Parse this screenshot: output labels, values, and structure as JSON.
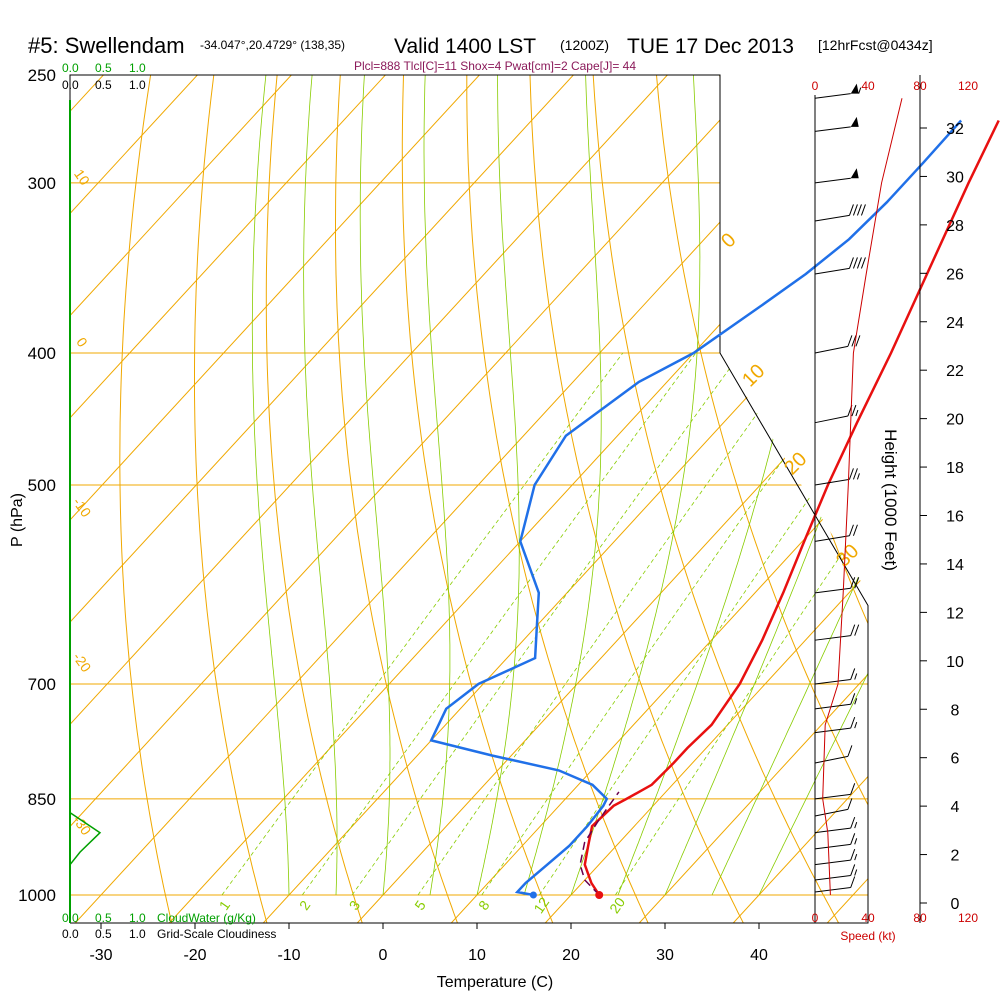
{
  "header": {
    "station": "#5: Swellendam",
    "coords": "-34.047°,20.4729° (138,35)",
    "valid": "Valid 1400 LST",
    "zulu": "(1200Z)",
    "date": "TUE 17 Dec 2013",
    "forecast": "[12hrFcst@0434z]",
    "indices": "Plcl=888 Tlcl[C]=11 Shox=4 Pwat[cm]=2 Cape[J]= 44"
  },
  "colors": {
    "temperature": "#e81010",
    "dewpoint": "#2070e8",
    "isotherm": "#f0a800",
    "moist_adiabat": "#88cc00",
    "mixing_ratio": "#88cc00",
    "parcel": "#6a0050",
    "cloud_water": "#00a000",
    "speed": "#cc0000",
    "indices_text": "#8b1a5a"
  },
  "chart_data": {
    "type": "line",
    "title": "#5: Swellendam",
    "xlabel": "Temperature (C)",
    "ylabel": "P (hPa)",
    "xlim": [
      -35,
      47
    ],
    "ylim": [
      1000,
      250
    ],
    "x_ticks": [
      "-30",
      "-20",
      "-10",
      "0",
      "10",
      "20",
      "30",
      "40"
    ],
    "pressure_ticks": [
      "250",
      "300",
      "400",
      "500",
      "700",
      "850",
      "1000"
    ],
    "height_axis": {
      "label": "Height (1000 Feet)",
      "ticks": [
        "0",
        "2",
        "4",
        "6",
        "8",
        "10",
        "12",
        "14",
        "16",
        "18",
        "20",
        "22",
        "24",
        "26",
        "28",
        "30",
        "32"
      ]
    },
    "speed_axis": {
      "label": "Speed (kt)",
      "ticks": [
        "0",
        "40",
        "80",
        "120"
      ]
    },
    "cloud_axis": {
      "cloudwater_label": "CloudWater (g/Kg)",
      "cloudiness_label": "Grid-Scale Cloudiness",
      "ticks": [
        "0.0",
        "0.5",
        "1.0"
      ]
    },
    "isotherm_labels": [
      "10",
      "0",
      "-10",
      "-20",
      "-30",
      "0",
      "10",
      "20",
      "30"
    ],
    "mixing_ratio_labels": [
      "1",
      "2",
      "3",
      "5",
      "8",
      "12",
      "20"
    ],
    "series": [
      {
        "name": "Temperature",
        "points": [
          [
            23,
            1000
          ],
          [
            21,
            980
          ],
          [
            18.5,
            950
          ],
          [
            17,
            920
          ],
          [
            15.5,
            890
          ],
          [
            15.8,
            860
          ],
          [
            16.5,
            850
          ],
          [
            17.8,
            830
          ],
          [
            18,
            800
          ],
          [
            18,
            780
          ],
          [
            18.3,
            750
          ],
          [
            17.3,
            700
          ],
          [
            15.4,
            650
          ],
          [
            13,
            600
          ],
          [
            10.2,
            550
          ],
          [
            7.2,
            500
          ],
          [
            4.2,
            450
          ],
          [
            1,
            400
          ],
          [
            -2.9,
            350
          ],
          [
            -7.4,
            300
          ],
          [
            -10.3,
            270
          ]
        ]
      },
      {
        "name": "Dewpoint",
        "points": [
          [
            16,
            1000
          ],
          [
            14,
            995
          ],
          [
            14,
            980
          ],
          [
            14.5,
            950
          ],
          [
            15,
            920
          ],
          [
            15,
            890
          ],
          [
            14.7,
            860
          ],
          [
            14.4,
            850
          ],
          [
            11.5,
            830
          ],
          [
            6.5,
            810
          ],
          [
            -2,
            790
          ],
          [
            -10,
            770
          ],
          [
            -11.5,
            730
          ],
          [
            -10.5,
            700
          ],
          [
            -7,
            670
          ],
          [
            -9.5,
            640
          ],
          [
            -13,
            600
          ],
          [
            -20,
            550
          ],
          [
            -24,
            500
          ],
          [
            -25.5,
            460
          ],
          [
            -23,
            420
          ],
          [
            -20,
            400
          ],
          [
            -17.5,
            370
          ],
          [
            -15.8,
            350
          ],
          [
            -14.6,
            330
          ],
          [
            -14.2,
            310
          ],
          [
            -14.2,
            290
          ],
          [
            -14.3,
            270
          ]
        ]
      },
      {
        "name": "Parcel",
        "points": [
          [
            23,
            1000
          ],
          [
            20,
            975
          ],
          [
            18,
            950
          ],
          [
            16.3,
            915
          ],
          [
            15.7,
            885
          ],
          [
            15.3,
            860
          ],
          [
            15,
            840
          ]
        ]
      }
    ],
    "wind_barbs": [
      {
        "p": 995,
        "speed_kt": 10,
        "dir_deg": 290
      },
      {
        "p": 975,
        "speed_kt": 15,
        "dir_deg": 290
      },
      {
        "p": 950,
        "speed_kt": 15,
        "dir_deg": 290
      },
      {
        "p": 925,
        "speed_kt": 15,
        "dir_deg": 290
      },
      {
        "p": 900,
        "speed_kt": 15,
        "dir_deg": 290
      },
      {
        "p": 875,
        "speed_kt": 10,
        "dir_deg": 300
      },
      {
        "p": 850,
        "speed_kt": 10,
        "dir_deg": 290
      },
      {
        "p": 800,
        "speed_kt": 10,
        "dir_deg": 300
      },
      {
        "p": 760,
        "speed_kt": 15,
        "dir_deg": 290
      },
      {
        "p": 730,
        "speed_kt": 15,
        "dir_deg": 290
      },
      {
        "p": 700,
        "speed_kt": 15,
        "dir_deg": 290
      },
      {
        "p": 650,
        "speed_kt": 20,
        "dir_deg": 290
      },
      {
        "p": 600,
        "speed_kt": 20,
        "dir_deg": 290
      },
      {
        "p": 550,
        "speed_kt": 20,
        "dir_deg": 295
      },
      {
        "p": 500,
        "speed_kt": 25,
        "dir_deg": 295
      },
      {
        "p": 450,
        "speed_kt": 25,
        "dir_deg": 300
      },
      {
        "p": 400,
        "speed_kt": 30,
        "dir_deg": 300
      },
      {
        "p": 350,
        "speed_kt": 40,
        "dir_deg": 295
      },
      {
        "p": 320,
        "speed_kt": 40,
        "dir_deg": 295
      },
      {
        "p": 300,
        "speed_kt": 50,
        "dir_deg": 290
      },
      {
        "p": 275,
        "speed_kt": 50,
        "dir_deg": 290
      },
      {
        "p": 260,
        "speed_kt": 55,
        "dir_deg": 290
      }
    ],
    "speed_profile": {
      "name": "Speed",
      "points": [
        [
          12,
          1000
        ],
        [
          10,
          900
        ],
        [
          6,
          850
        ],
        [
          8,
          750
        ],
        [
          18,
          700
        ],
        [
          22,
          600
        ],
        [
          26,
          500
        ],
        [
          30,
          400
        ],
        [
          40,
          350
        ],
        [
          52,
          300
        ],
        [
          68,
          260
        ]
      ]
    },
    "cloud_water": {
      "name": "CloudWater",
      "points": [
        [
          0,
          870
        ],
        [
          0.3,
          900
        ],
        [
          0.1,
          930
        ],
        [
          0,
          950
        ]
      ]
    }
  }
}
